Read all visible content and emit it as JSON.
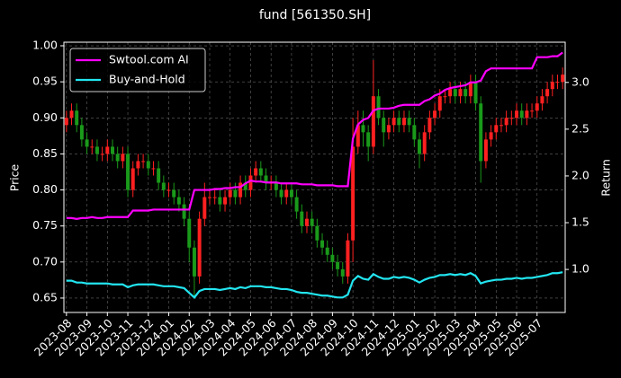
{
  "chart_data": {
    "type": "candlestick",
    "title": "fund [561350.SH]",
    "y_label": "Price",
    "y2_label": "Return",
    "x": [
      "2023-08",
      "2023-08",
      "2023-08",
      "2023-08",
      "2023-09",
      "2023-09",
      "2023-09",
      "2023-09",
      "2023-10",
      "2023-10",
      "2023-10",
      "2023-10",
      "2023-11",
      "2023-11",
      "2023-11",
      "2023-11",
      "2023-12",
      "2023-12",
      "2023-12",
      "2023-12",
      "2024-01",
      "2024-01",
      "2024-01",
      "2024-01",
      "2024-02",
      "2024-02",
      "2024-02",
      "2024-02",
      "2024-03",
      "2024-03",
      "2024-03",
      "2024-03",
      "2024-04",
      "2024-04",
      "2024-04",
      "2024-04",
      "2024-05",
      "2024-05",
      "2024-05",
      "2024-05",
      "2024-06",
      "2024-06",
      "2024-06",
      "2024-06",
      "2024-07",
      "2024-07",
      "2024-07",
      "2024-07",
      "2024-08",
      "2024-08",
      "2024-08",
      "2024-08",
      "2024-09",
      "2024-09",
      "2024-09",
      "2024-09",
      "2024-10",
      "2024-10",
      "2024-10",
      "2024-10",
      "2024-11",
      "2024-11",
      "2024-11",
      "2024-11",
      "2024-12",
      "2024-12",
      "2024-12",
      "2024-12",
      "2025-01",
      "2025-01",
      "2025-01",
      "2025-01",
      "2025-02",
      "2025-02",
      "2025-02",
      "2025-02",
      "2025-03",
      "2025-03",
      "2025-03",
      "2025-03",
      "2025-04",
      "2025-04",
      "2025-04",
      "2025-04",
      "2025-05",
      "2025-05",
      "2025-05",
      "2025-05",
      "2025-06",
      "2025-06",
      "2025-06",
      "2025-06",
      "2025-07",
      "2025-07",
      "2025-07",
      "2025-07",
      "2025-08",
      "2025-08"
    ],
    "open": [
      0.89,
      0.9,
      0.91,
      0.89,
      0.87,
      0.86,
      0.86,
      0.85,
      0.85,
      0.86,
      0.85,
      0.84,
      0.85,
      0.8,
      0.83,
      0.84,
      0.84,
      0.83,
      0.83,
      0.81,
      0.8,
      0.8,
      0.79,
      0.78,
      0.76,
      0.72,
      0.68,
      0.76,
      0.79,
      0.79,
      0.79,
      0.78,
      0.79,
      0.8,
      0.79,
      0.81,
      0.8,
      0.82,
      0.83,
      0.82,
      0.81,
      0.81,
      0.8,
      0.79,
      0.8,
      0.79,
      0.77,
      0.75,
      0.76,
      0.75,
      0.73,
      0.72,
      0.71,
      0.7,
      0.69,
      0.68,
      0.73,
      0.86,
      0.89,
      0.88,
      0.86,
      0.93,
      0.9,
      0.88,
      0.89,
      0.9,
      0.89,
      0.9,
      0.89,
      0.87,
      0.85,
      0.88,
      0.9,
      0.91,
      0.93,
      0.93,
      0.94,
      0.93,
      0.94,
      0.93,
      0.95,
      0.92,
      0.84,
      0.87,
      0.88,
      0.89,
      0.89,
      0.9,
      0.9,
      0.91,
      0.9,
      0.91,
      0.91,
      0.92,
      0.93,
      0.94,
      0.95,
      0.95
    ],
    "high": [
      0.91,
      0.92,
      0.92,
      0.9,
      0.88,
      0.87,
      0.87,
      0.86,
      0.87,
      0.87,
      0.86,
      0.86,
      0.86,
      0.84,
      0.85,
      0.85,
      0.85,
      0.84,
      0.84,
      0.82,
      0.81,
      0.81,
      0.8,
      0.79,
      0.77,
      0.73,
      0.77,
      0.81,
      0.8,
      0.8,
      0.8,
      0.8,
      0.81,
      0.81,
      0.82,
      0.82,
      0.83,
      0.84,
      0.84,
      0.83,
      0.82,
      0.82,
      0.81,
      0.81,
      0.81,
      0.8,
      0.78,
      0.77,
      0.77,
      0.76,
      0.74,
      0.73,
      0.72,
      0.71,
      0.7,
      0.74,
      0.9,
      0.91,
      0.91,
      0.89,
      0.98,
      0.94,
      0.91,
      0.9,
      0.91,
      0.91,
      0.91,
      0.91,
      0.9,
      0.88,
      0.89,
      0.91,
      0.92,
      0.94,
      0.94,
      0.95,
      0.95,
      0.95,
      0.95,
      0.96,
      0.96,
      0.93,
      0.88,
      0.89,
      0.9,
      0.9,
      0.91,
      0.91,
      0.92,
      0.92,
      0.92,
      0.92,
      0.93,
      0.94,
      0.95,
      0.96,
      0.96,
      0.97
    ],
    "low": [
      0.88,
      0.89,
      0.88,
      0.86,
      0.85,
      0.85,
      0.84,
      0.84,
      0.84,
      0.84,
      0.83,
      0.83,
      0.79,
      0.79,
      0.82,
      0.83,
      0.82,
      0.82,
      0.8,
      0.79,
      0.79,
      0.78,
      0.77,
      0.75,
      0.7,
      0.65,
      0.67,
      0.75,
      0.78,
      0.78,
      0.77,
      0.77,
      0.78,
      0.78,
      0.78,
      0.79,
      0.79,
      0.81,
      0.81,
      0.8,
      0.8,
      0.79,
      0.78,
      0.78,
      0.78,
      0.76,
      0.74,
      0.74,
      0.74,
      0.72,
      0.71,
      0.7,
      0.69,
      0.68,
      0.67,
      0.67,
      0.7,
      0.85,
      0.86,
      0.84,
      0.85,
      0.89,
      0.86,
      0.87,
      0.88,
      0.88,
      0.88,
      0.88,
      0.86,
      0.83,
      0.84,
      0.87,
      0.89,
      0.9,
      0.92,
      0.92,
      0.92,
      0.92,
      0.92,
      0.92,
      0.91,
      0.81,
      0.83,
      0.86,
      0.87,
      0.88,
      0.88,
      0.89,
      0.89,
      0.89,
      0.89,
      0.9,
      0.9,
      0.91,
      0.92,
      0.93,
      0.94,
      0.94
    ],
    "close": [
      0.9,
      0.91,
      0.89,
      0.87,
      0.86,
      0.86,
      0.85,
      0.85,
      0.86,
      0.85,
      0.84,
      0.85,
      0.8,
      0.83,
      0.84,
      0.84,
      0.83,
      0.83,
      0.81,
      0.8,
      0.8,
      0.79,
      0.78,
      0.76,
      0.72,
      0.68,
      0.76,
      0.79,
      0.79,
      0.79,
      0.78,
      0.79,
      0.8,
      0.79,
      0.81,
      0.8,
      0.82,
      0.83,
      0.82,
      0.81,
      0.81,
      0.8,
      0.79,
      0.8,
      0.79,
      0.77,
      0.75,
      0.76,
      0.75,
      0.73,
      0.72,
      0.71,
      0.7,
      0.69,
      0.68,
      0.73,
      0.86,
      0.89,
      0.88,
      0.86,
      0.93,
      0.9,
      0.88,
      0.89,
      0.9,
      0.89,
      0.9,
      0.89,
      0.87,
      0.85,
      0.88,
      0.9,
      0.91,
      0.93,
      0.93,
      0.94,
      0.93,
      0.94,
      0.93,
      0.95,
      0.92,
      0.84,
      0.87,
      0.88,
      0.89,
      0.89,
      0.9,
      0.9,
      0.91,
      0.9,
      0.91,
      0.91,
      0.92,
      0.93,
      0.94,
      0.95,
      0.95,
      0.96
    ],
    "up_color": "#ff2020",
    "down_color": "#1a9a1a",
    "series": [
      {
        "name": "Swtool.com AI",
        "color": "#ff00ff",
        "axis": "y2",
        "values": [
          1.55,
          1.55,
          1.54,
          1.55,
          1.55,
          1.56,
          1.55,
          1.55,
          1.56,
          1.56,
          1.56,
          1.56,
          1.56,
          1.63,
          1.63,
          1.63,
          1.63,
          1.64,
          1.64,
          1.64,
          1.64,
          1.64,
          1.64,
          1.64,
          1.64,
          1.85,
          1.85,
          1.85,
          1.85,
          1.86,
          1.86,
          1.87,
          1.87,
          1.88,
          1.88,
          1.92,
          1.95,
          1.94,
          1.94,
          1.93,
          1.93,
          1.93,
          1.92,
          1.92,
          1.92,
          1.92,
          1.91,
          1.91,
          1.91,
          1.9,
          1.9,
          1.9,
          1.9,
          1.89,
          1.89,
          1.89,
          2.4,
          2.55,
          2.6,
          2.62,
          2.7,
          2.72,
          2.72,
          2.72,
          2.73,
          2.75,
          2.76,
          2.76,
          2.76,
          2.76,
          2.8,
          2.82,
          2.86,
          2.88,
          2.92,
          2.94,
          2.95,
          2.96,
          2.97,
          3.0,
          3.0,
          3.02,
          3.12,
          3.15,
          3.15,
          3.15,
          3.15,
          3.15,
          3.15,
          3.15,
          3.15,
          3.15,
          3.27,
          3.27,
          3.27,
          3.28,
          3.28,
          3.32
        ]
      },
      {
        "name": "Buy-and-Hold",
        "color": "#22e5f0",
        "axis": "y2",
        "values": [
          0.88,
          0.88,
          0.86,
          0.86,
          0.85,
          0.85,
          0.85,
          0.85,
          0.85,
          0.84,
          0.84,
          0.84,
          0.81,
          0.83,
          0.84,
          0.84,
          0.84,
          0.84,
          0.83,
          0.82,
          0.82,
          0.82,
          0.81,
          0.8,
          0.75,
          0.7,
          0.77,
          0.79,
          0.79,
          0.79,
          0.78,
          0.79,
          0.8,
          0.79,
          0.81,
          0.8,
          0.82,
          0.82,
          0.82,
          0.81,
          0.81,
          0.8,
          0.79,
          0.79,
          0.78,
          0.76,
          0.75,
          0.75,
          0.74,
          0.73,
          0.72,
          0.72,
          0.71,
          0.7,
          0.7,
          0.73,
          0.88,
          0.93,
          0.9,
          0.89,
          0.95,
          0.92,
          0.9,
          0.9,
          0.92,
          0.91,
          0.92,
          0.91,
          0.89,
          0.86,
          0.89,
          0.91,
          0.92,
          0.94,
          0.94,
          0.95,
          0.94,
          0.95,
          0.94,
          0.96,
          0.93,
          0.85,
          0.87,
          0.88,
          0.89,
          0.89,
          0.9,
          0.9,
          0.91,
          0.9,
          0.91,
          0.91,
          0.92,
          0.93,
          0.94,
          0.96,
          0.96,
          0.97
        ]
      }
    ],
    "xticks": [
      "2023-08",
      "2023-09",
      "2023-10",
      "2023-11",
      "2023-12",
      "2024-01",
      "2024-02",
      "2024-03",
      "2024-04",
      "2024-05",
      "2024-06",
      "2024-07",
      "2024-08",
      "2024-09",
      "2024-10",
      "2024-11",
      "2024-12",
      "2025-01",
      "2025-02",
      "2025-03",
      "2025-04",
      "2025-05",
      "2025-06",
      "2025-07"
    ],
    "ylim": [
      0.63,
      1.005
    ],
    "yticks": [
      {
        "value": 0.65,
        "label": "0.65"
      },
      {
        "value": 0.7,
        "label": "0.70"
      },
      {
        "value": 0.75,
        "label": "0.75"
      },
      {
        "value": 0.8,
        "label": "0.80"
      },
      {
        "value": 0.85,
        "label": "0.85"
      },
      {
        "value": 0.9,
        "label": "0.90"
      },
      {
        "value": 0.95,
        "label": "0.95"
      },
      {
        "value": 1.0,
        "label": "1.00"
      }
    ],
    "y2lim": [
      0.54,
      3.43
    ],
    "y2ticks": [
      {
        "value": 1.0,
        "label": "1.0"
      },
      {
        "value": 1.5,
        "label": "1.5"
      },
      {
        "value": 2.0,
        "label": "2.0"
      },
      {
        "value": 2.5,
        "label": "2.5"
      },
      {
        "value": 3.0,
        "label": "3.0"
      }
    ],
    "grid": true,
    "legend": "upper left"
  }
}
